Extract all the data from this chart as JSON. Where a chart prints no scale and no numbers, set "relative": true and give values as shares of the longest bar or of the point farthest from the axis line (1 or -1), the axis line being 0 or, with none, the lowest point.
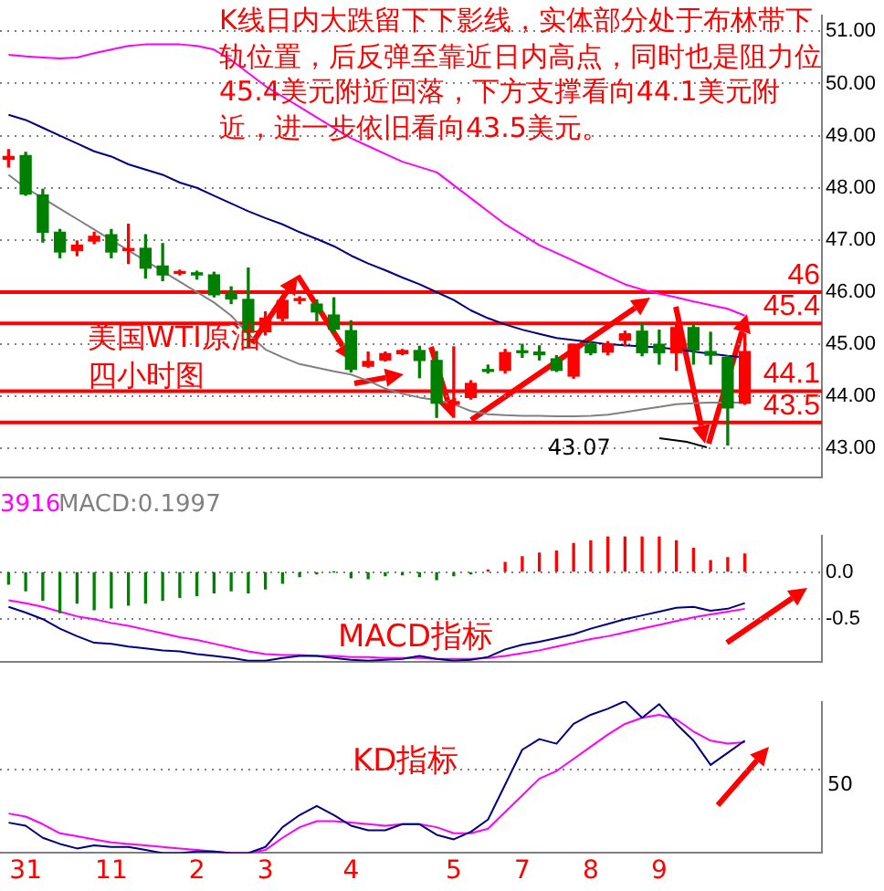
{
  "chart_data": [
    {
      "type": "candlestick",
      "categories": [
        null,
        "31",
        null,
        null,
        null,
        null,
        "11",
        null,
        null,
        null,
        null,
        "2",
        null,
        null,
        null,
        "3",
        null,
        null,
        null,
        null,
        "4",
        null,
        null,
        null,
        null,
        null,
        "5",
        null,
        null,
        null,
        "7",
        null,
        null,
        null,
        "8",
        null,
        null,
        null,
        "9",
        null,
        null,
        null,
        null,
        null
      ],
      "ohlc": [
        [
          48.55,
          48.73,
          48.4,
          48.6
        ],
        [
          48.62,
          48.68,
          47.86,
          47.88
        ],
        [
          47.86,
          47.97,
          46.96,
          47.15
        ],
        [
          47.15,
          47.2,
          46.66,
          46.77
        ],
        [
          46.8,
          46.98,
          46.7,
          46.9
        ],
        [
          46.98,
          47.15,
          46.93,
          47.07
        ],
        [
          47.1,
          47.2,
          46.66,
          46.77
        ],
        [
          46.8,
          47.3,
          46.55,
          46.83
        ],
        [
          46.84,
          47.1,
          46.27,
          46.46
        ],
        [
          46.5,
          46.93,
          46.22,
          46.33
        ],
        [
          46.36,
          46.42,
          46.33,
          46.39
        ],
        [
          46.37,
          46.4,
          46.25,
          46.33
        ],
        [
          46.33,
          46.38,
          45.91,
          45.95
        ],
        [
          45.98,
          46.1,
          45.78,
          45.87
        ],
        [
          45.86,
          46.46,
          44.96,
          45.23
        ],
        [
          45.24,
          45.62,
          45.18,
          45.5
        ],
        [
          45.5,
          45.9,
          45.45,
          45.84
        ],
        [
          45.84,
          45.91,
          45.78,
          45.86
        ],
        [
          45.77,
          45.85,
          45.45,
          45.62
        ],
        [
          45.56,
          45.89,
          45.23,
          45.29
        ],
        [
          45.26,
          45.45,
          44.47,
          44.52
        ],
        [
          44.58,
          44.85,
          44.56,
          44.67
        ],
        [
          44.7,
          44.85,
          44.68,
          44.82
        ],
        [
          44.82,
          44.9,
          44.8,
          44.88
        ],
        [
          44.88,
          44.96,
          44.36,
          44.69
        ],
        [
          44.69,
          44.86,
          43.6,
          43.87
        ],
        [
          43.85,
          44.95,
          43.6,
          43.9
        ],
        [
          43.98,
          44.3,
          43.95,
          44.25
        ],
        [
          44.5,
          44.6,
          44.45,
          44.48
        ],
        [
          44.5,
          44.9,
          44.45,
          44.84
        ],
        [
          44.85,
          45.0,
          44.75,
          44.84
        ],
        [
          44.85,
          44.97,
          44.7,
          44.8
        ],
        [
          44.72,
          44.78,
          44.48,
          44.5
        ],
        [
          44.39,
          45.0,
          44.35,
          45.0
        ],
        [
          45.0,
          45.05,
          44.8,
          44.84
        ],
        [
          44.85,
          45.05,
          44.8,
          45.0
        ],
        [
          45.08,
          45.25,
          44.97,
          45.2
        ],
        [
          45.25,
          45.4,
          44.78,
          44.84
        ],
        [
          45.0,
          45.27,
          44.62,
          44.84
        ],
        [
          44.84,
          45.37,
          44.5,
          45.32
        ],
        [
          45.32,
          45.37,
          44.62,
          44.89
        ],
        [
          44.86,
          45.23,
          44.62,
          44.79
        ],
        [
          44.75,
          44.78,
          43.07,
          43.78
        ],
        [
          43.87,
          45.2,
          43.85,
          44.86
        ]
      ],
      "colors": [
        "#ff0000",
        "#008000",
        "#008000",
        "#008000",
        "#ff0000",
        "#ff0000",
        "#008000",
        "#ff0000",
        "#008000",
        "#008000",
        "#ff0000",
        "#008000",
        "#008000",
        "#008000",
        "#008000",
        "#ff0000",
        "#ff0000",
        "#ff0000",
        "#008000",
        "#008000",
        "#008000",
        "#ff0000",
        "#ff0000",
        "#ff0000",
        "#008000",
        "#008000",
        "#ff0000",
        "#ff0000",
        "#008000",
        "#ff0000",
        "#008000",
        "#008000",
        "#008000",
        "#ff0000",
        "#008000",
        "#ff0000",
        "#ff0000",
        "#008000",
        "#008000",
        "#ff0000",
        "#008000",
        "#008000",
        "#008000",
        "#ff0000"
      ],
      "series": [
        {
          "type": "line",
          "color": "#ff00ff",
          "values": [
            50.55,
            50.52,
            50.5,
            50.48,
            50.5,
            50.58,
            50.65,
            50.72,
            50.75,
            50.75,
            50.75,
            50.72,
            50.65,
            50.45,
            50.2,
            49.95,
            49.75,
            49.55,
            49.35,
            49.15,
            48.95,
            48.8,
            48.65,
            48.5,
            48.4,
            48.3,
            48.05,
            47.8,
            47.55,
            47.3,
            47.1,
            46.9,
            46.75,
            46.6,
            46.45,
            46.3,
            46.15,
            46.05,
            45.97,
            45.9,
            45.82,
            45.75,
            45.68,
            45.55
          ]
        },
        {
          "type": "line",
          "color": "#000080",
          "values": [
            49.4,
            49.3,
            49.15,
            49.0,
            48.85,
            48.7,
            48.6,
            48.45,
            48.35,
            48.25,
            48.1,
            48.0,
            47.85,
            47.7,
            47.55,
            47.42,
            47.3,
            47.15,
            47.02,
            46.88,
            46.7,
            46.55,
            46.42,
            46.28,
            46.15,
            46.0,
            45.85,
            45.65,
            45.5,
            45.38,
            45.28,
            45.2,
            45.12,
            45.08,
            45.04,
            45.0,
            44.98,
            44.96,
            44.94,
            44.9,
            44.86,
            44.82,
            44.78,
            44.75
          ]
        },
        {
          "type": "line",
          "color": "#808080",
          "values": [
            48.25,
            48.0,
            47.8,
            47.6,
            47.4,
            47.2,
            47.0,
            46.8,
            46.6,
            46.4,
            46.2,
            46.0,
            45.8,
            45.55,
            45.2,
            44.9,
            44.75,
            44.62,
            44.55,
            44.48,
            44.42,
            44.3,
            44.15,
            44.05,
            43.98,
            43.93,
            43.85,
            43.72,
            43.66,
            43.64,
            43.63,
            43.63,
            43.62,
            43.62,
            43.63,
            43.65,
            43.7,
            43.75,
            43.8,
            43.85,
            43.87,
            43.88,
            43.88,
            43.88
          ]
        }
      ],
      "ylim": [
        42.45,
        51.3
      ],
      "yticks": [
        {
          "value": 43,
          "label": "43.00"
        },
        {
          "value": 44,
          "label": "44.00"
        },
        {
          "value": 45,
          "label": "45.00"
        },
        {
          "value": 46,
          "label": "46.00"
        },
        {
          "value": 47,
          "label": "47.00"
        },
        {
          "value": 48,
          "label": "48.00"
        },
        {
          "value": 49,
          "label": "49.00"
        },
        {
          "value": 50,
          "label": "50.00"
        },
        {
          "value": 51,
          "label": "51.00"
        }
      ],
      "grid": "y",
      "tick_labels": "y",
      "ref_lines": [
        {
          "axis": "y",
          "value": 46,
          "label": "46",
          "color": "#ff0000"
        },
        {
          "axis": "y",
          "value": 45.4,
          "label": "45.4",
          "color": "#ff0000"
        },
        {
          "axis": "y",
          "value": 44.1,
          "label": "44.1",
          "color": "#ff0000"
        },
        {
          "axis": "y",
          "value": 43.5,
          "label": "43.5",
          "color": "#ff0000"
        }
      ],
      "annotations": [
        "K线日内大跌留下下影线，实体部分处于布林带下轨位置，后反弹至靠近日内高点，同时也是阻力位45.4美元附近回落，下方支撑看向44.1美元附近，进一步依旧看向43.5美元。",
        "美国WTI原油四小时图",
        "43.07"
      ]
    },
    {
      "type": "bar",
      "categories": [
        null,
        "31",
        null,
        null,
        null,
        null,
        "11",
        null,
        null,
        null,
        null,
        "2",
        null,
        null,
        null,
        "3",
        null,
        null,
        null,
        null,
        "4",
        null,
        null,
        null,
        null,
        null,
        "5",
        null,
        null,
        null,
        "7",
        null,
        null,
        null,
        "8",
        null,
        null,
        null,
        "9",
        null,
        null,
        null,
        null,
        null
      ],
      "series": [
        {
          "type": "bar",
          "values": [
            -0.13,
            -0.2,
            -0.3,
            -0.43,
            -0.33,
            -0.4,
            -0.38,
            -0.35,
            -0.33,
            -0.3,
            -0.27,
            -0.25,
            -0.22,
            -0.2,
            -0.22,
            -0.18,
            -0.12,
            -0.05,
            -0.02,
            0,
            -0.06,
            -0.07,
            -0.04,
            -0.03,
            -0.05,
            -0.08,
            -0.04,
            -0.02,
            0.02,
            0.1,
            0.16,
            0.2,
            0.22,
            0.3,
            0.33,
            0.37,
            0.37,
            0.37,
            0.37,
            0.33,
            0.25,
            0.12,
            0.15,
            0.19
          ],
          "colors": [
            "#008000",
            "#008000",
            "#008000",
            "#008000",
            "#008000",
            "#008000",
            "#008000",
            "#008000",
            "#008000",
            "#008000",
            "#008000",
            "#008000",
            "#008000",
            "#008000",
            "#008000",
            "#008000",
            "#008000",
            "#008000",
            "#008000",
            "#008000",
            "#008000",
            "#008000",
            "#008000",
            "#008000",
            "#008000",
            "#008000",
            "#008000",
            "#008000",
            "#ff0000",
            "#ff0000",
            "#ff0000",
            "#ff0000",
            "#ff0000",
            "#ff0000",
            "#ff0000",
            "#ff0000",
            "#ff0000",
            "#ff0000",
            "#ff0000",
            "#ff0000",
            "#ff0000",
            "#ff0000",
            "#ff0000",
            "#ff0000"
          ]
        },
        {
          "type": "line",
          "color": "#000080",
          "values": [
            -0.37,
            -0.43,
            -0.5,
            -0.6,
            -0.68,
            -0.75,
            -0.76,
            -0.79,
            -0.81,
            -0.83,
            -0.84,
            -0.87,
            -0.89,
            -0.91,
            -0.94,
            -0.94,
            -0.91,
            -0.89,
            -0.89,
            -0.91,
            -0.93,
            -0.94,
            -0.93,
            -0.92,
            -0.89,
            -0.92,
            -0.94,
            -0.93,
            -0.9,
            -0.82,
            -0.77,
            -0.74,
            -0.7,
            -0.66,
            -0.6,
            -0.55,
            -0.5,
            -0.46,
            -0.42,
            -0.38,
            -0.37,
            -0.41,
            -0.39,
            -0.33
          ]
        },
        {
          "type": "line",
          "color": "#ff00ff",
          "values": [
            -0.3,
            -0.33,
            -0.37,
            -0.42,
            -0.47,
            -0.5,
            -0.54,
            -0.57,
            -0.61,
            -0.65,
            -0.69,
            -0.72,
            -0.76,
            -0.8,
            -0.84,
            -0.87,
            -0.88,
            -0.88,
            -0.89,
            -0.89,
            -0.9,
            -0.9,
            -0.91,
            -0.91,
            -0.91,
            -0.92,
            -0.92,
            -0.92,
            -0.91,
            -0.89,
            -0.86,
            -0.83,
            -0.79,
            -0.75,
            -0.71,
            -0.68,
            -0.64,
            -0.6,
            -0.56,
            -0.52,
            -0.48,
            -0.45,
            -0.42,
            -0.39
          ]
        }
      ],
      "ylim": [
        -0.95,
        0.38
      ],
      "yticks": [
        {
          "value": 0,
          "label": "0.0"
        },
        -0.5
      ],
      "grid": "y",
      "tick_labels": "y",
      "annotations": [
        "3916",
        "MACD:0.1997",
        "MACD指标"
      ]
    },
    {
      "type": "line",
      "categories": [
        null,
        "31",
        null,
        null,
        null,
        null,
        "11",
        null,
        null,
        null,
        null,
        "2",
        null,
        null,
        null,
        "3",
        null,
        null,
        null,
        null,
        "4",
        null,
        null,
        null,
        null,
        null,
        "5",
        null,
        null,
        null,
        "7",
        null,
        null,
        null,
        "8",
        null,
        null,
        null,
        "9",
        null,
        null,
        null,
        null,
        null
      ],
      "relative": true,
      "series": [
        {
          "color": "#000080",
          "values": [
            0.2,
            0.18,
            0.1,
            0.06,
            0.03,
            0.05,
            0.04,
            0.04,
            0.02,
            0,
            0,
            0.01,
            0.01,
            0,
            0,
            0.04,
            0.17,
            0.25,
            0.31,
            0.25,
            0.18,
            0.15,
            0.15,
            0.19,
            0.19,
            0.12,
            0.09,
            0.14,
            0.22,
            0.45,
            0.68,
            0.75,
            0.72,
            0.85,
            0.91,
            0.95,
            1,
            0.89,
            0.98,
            0.85,
            0.74,
            0.58,
            0.66,
            0.74
          ]
        },
        {
          "color": "#ff00ff",
          "values": [
            0.26,
            0.24,
            0.19,
            0.13,
            0.11,
            0.09,
            0.07,
            0.06,
            0.05,
            0.04,
            0.03,
            0.02,
            0.01,
            0,
            0,
            0.02,
            0.1,
            0.17,
            0.21,
            0.21,
            0.2,
            0.19,
            0.18,
            0.19,
            0.19,
            0.17,
            0.13,
            0.13,
            0.16,
            0.27,
            0.38,
            0.49,
            0.54,
            0.62,
            0.7,
            0.78,
            0.85,
            0.89,
            0.91,
            0.88,
            0.8,
            0.74,
            0.72,
            0.73
          ]
        }
      ],
      "ref_lines": [
        {
          "axis": "y",
          "value": 0.55,
          "color": "#808080",
          "line_style": "dotted"
        }
      ],
      "tick_labels": "x",
      "annotations": [
        "KD指标",
        "50"
      ]
    }
  ]
}
